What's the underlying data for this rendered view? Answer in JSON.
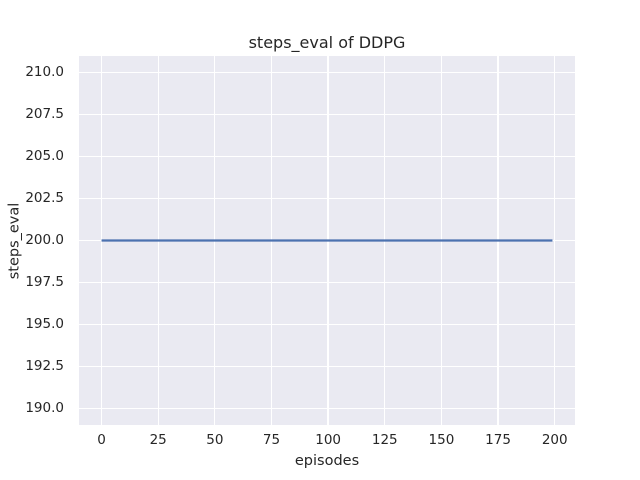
{
  "chart_data": {
    "type": "line",
    "title": "steps_eval of DDPG",
    "xlabel": "episodes",
    "ylabel": "steps_eval",
    "x_ticks": {
      "values": [
        0,
        25,
        50,
        75,
        100,
        125,
        150,
        175,
        200
      ],
      "labels": [
        "0",
        "25",
        "50",
        "75",
        "100",
        "125",
        "150",
        "175",
        "200"
      ]
    },
    "y_ticks": {
      "values": [
        190.0,
        192.5,
        195.0,
        197.5,
        200.0,
        202.5,
        205.0,
        207.5,
        210.0
      ],
      "labels": [
        "190.0",
        "192.5",
        "195.0",
        "197.5",
        "200.0",
        "202.5",
        "205.0",
        "207.5",
        "210.0"
      ]
    },
    "xlim": [
      -9.95,
      208.95
    ],
    "ylim": [
      189,
      211
    ],
    "grid": true,
    "legend": false,
    "series": [
      {
        "name": "DDPG",
        "color": "#4C72B0",
        "x": [
          0,
          199
        ],
        "y": [
          200,
          200
        ],
        "description": "constant steps_eval of 200 for all evaluated episodes 0-199"
      }
    ],
    "colors": {
      "figure_background": "#FFFFFF",
      "axes_background": "#EAEAF2",
      "gridline": "#FFFFFF",
      "text": "#262626"
    }
  }
}
